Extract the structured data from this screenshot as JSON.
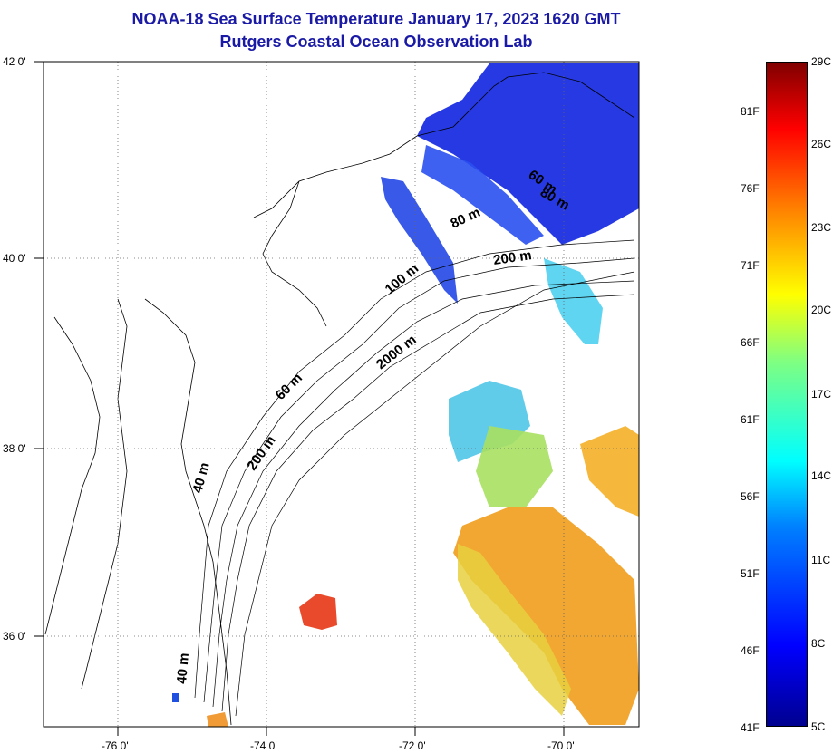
{
  "title": {
    "line1": "NOAA-18 Sea Surface Temperature January 17, 2023 1620 GMT",
    "line2": "Rutgers Coastal Ocean Observation Lab"
  },
  "map": {
    "lat_labels": [
      "42 0'",
      "40 0'",
      "38 0'",
      "36 0'"
    ],
    "lon_labels": [
      "-76 0'",
      "-74 0'",
      "-72 0'",
      "-70 0'"
    ],
    "contour_labels": [
      "60 m",
      "80 m",
      "200 m",
      "100 m",
      "2000 m",
      "60 m",
      "200 m",
      "40 m",
      "40 m",
      "80 m"
    ]
  },
  "colorbar": {
    "celsius_labels": [
      "29C",
      "26C",
      "23C",
      "20C",
      "17C",
      "14C",
      "11C",
      "8C",
      "5C"
    ],
    "fahrenheit_labels": [
      "81F",
      "76F",
      "71F",
      "66F",
      "61F",
      "56F",
      "51F",
      "46F",
      "41F"
    ],
    "colors": [
      "#00008f",
      "#0000ff",
      "#0080ff",
      "#00ffff",
      "#80ff80",
      "#ffff00",
      "#ff8000",
      "#ff0000",
      "#800000"
    ]
  }
}
